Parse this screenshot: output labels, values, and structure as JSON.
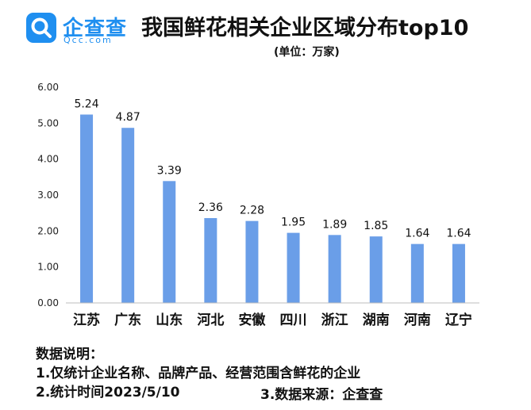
{
  "header": {
    "logo_cn": "企查查",
    "logo_en": "Qcc.com",
    "title": "我国鲜花相关企业区域分布top10",
    "unit": "(单位：万家)"
  },
  "notes": {
    "heading": "数据说明：",
    "line1": "1.仅统计企业名称、品牌产品、经营范围含鲜花的企业",
    "line2": "2.统计时间2023/5/10",
    "line3": "3.数据来源：企查查"
  },
  "colors": {
    "bar": "#6a9ee8",
    "brand": "#1f8ff0"
  },
  "chart_data": {
    "type": "bar",
    "categories": [
      "江苏",
      "广东",
      "山东",
      "河北",
      "安徽",
      "四川",
      "浙江",
      "湖南",
      "河南",
      "辽宁"
    ],
    "values": [
      5.24,
      4.87,
      3.39,
      2.36,
      2.28,
      1.95,
      1.89,
      1.85,
      1.64,
      1.64
    ],
    "value_labels": [
      "5.24",
      "4.87",
      "3.39",
      "2.36",
      "2.28",
      "1.95",
      "1.89",
      "1.85",
      "1.64",
      "1.64"
    ],
    "y_ticks": [
      "0.00",
      "1.00",
      "2.00",
      "3.00",
      "4.00",
      "5.00",
      "6.00"
    ],
    "ylim": [
      0,
      6
    ],
    "grid": false,
    "legend": "none"
  }
}
